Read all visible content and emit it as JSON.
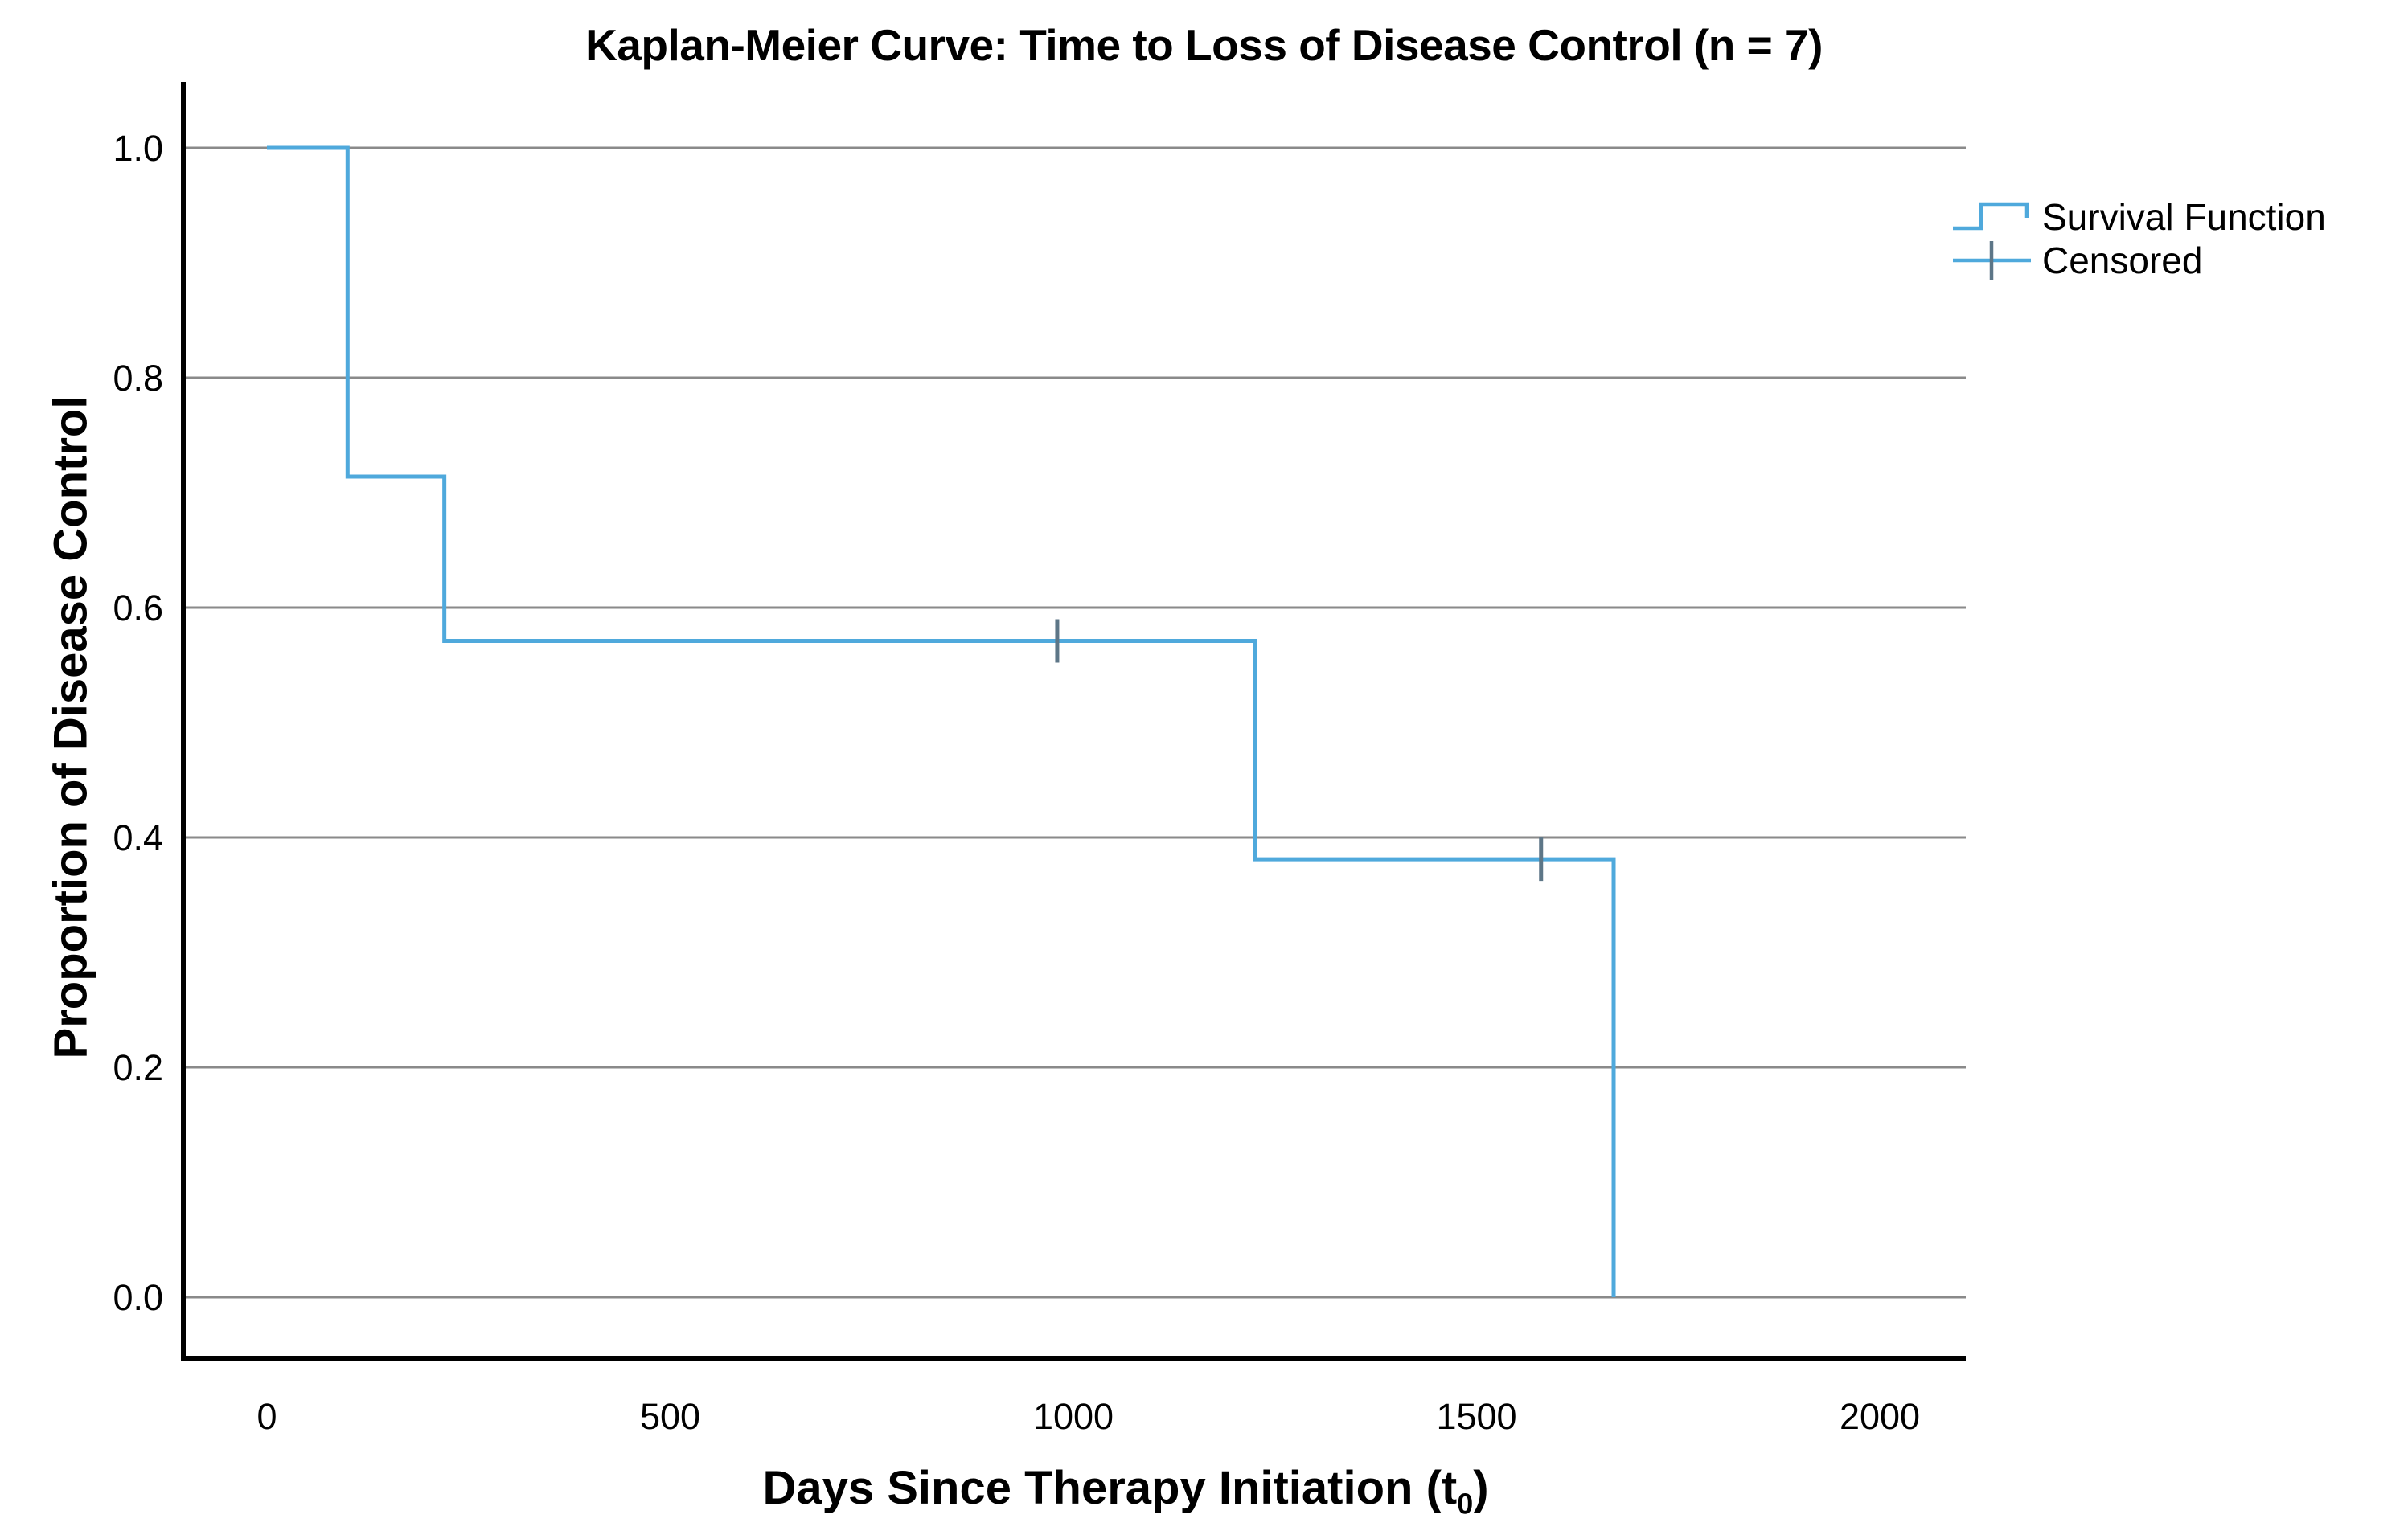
{
  "title": "Kaplan-Meier Curve: Time to Loss of Disease Control (n = 7)",
  "axes": {
    "x": {
      "title_main": "Days Since Therapy Initiation (t",
      "title_sub": "0",
      "title_close": ")",
      "tick_labels": [
        "0",
        "500",
        "1000",
        "1500",
        "2000"
      ]
    },
    "y": {
      "title": "Proportion of Disease Control",
      "tick_labels": [
        "0.0",
        "0.2",
        "0.4",
        "0.6",
        "0.8",
        "1.0"
      ]
    }
  },
  "legend": {
    "items": [
      {
        "label": "Survival Function",
        "symbol": "step-line"
      },
      {
        "label": "Censored",
        "symbol": "plus-cross"
      }
    ]
  },
  "chart_data": {
    "type": "line",
    "chart_style": "kaplan-meier-step",
    "title": "Kaplan-Meier Curve: Time to Loss of Disease Control (n = 7)",
    "xlabel": "Days Since Therapy Initiation (t0)",
    "ylabel": "Proportion of Disease Control",
    "n_subjects": 7,
    "xlim": [
      -110,
      2105
    ],
    "ylim": [
      0,
      1
    ],
    "x_ticks": [
      0,
      500,
      1000,
      1500,
      2000
    ],
    "y_ticks": [
      0,
      0.2,
      0.4,
      0.6,
      0.8,
      1
    ],
    "grid": "horizontal-gridlines",
    "legend_position": "upper-right-outside",
    "series": [
      {
        "name": "Survival Function",
        "style": "step-after",
        "points": [
          {
            "time_days": 0,
            "survival": 1.0
          },
          {
            "time_days": 100,
            "survival": 0.714
          },
          {
            "time_days": 220,
            "survival": 0.571
          },
          {
            "time_days": 1225,
            "survival": 0.381
          },
          {
            "time_days": 1670,
            "survival": 0.0
          }
        ]
      },
      {
        "name": "Censored",
        "style": "plus-marks",
        "points": [
          {
            "time_days": 980,
            "survival": 0.571
          },
          {
            "time_days": 1580,
            "survival": 0.381
          }
        ]
      }
    ],
    "colors": {
      "survival_line": "#4FA9DC",
      "censor_mark": "#5D7687",
      "gridline": "#8A8A8A",
      "axis_line": "#000000",
      "text": "#000000",
      "background": "#FFFFFF"
    }
  }
}
